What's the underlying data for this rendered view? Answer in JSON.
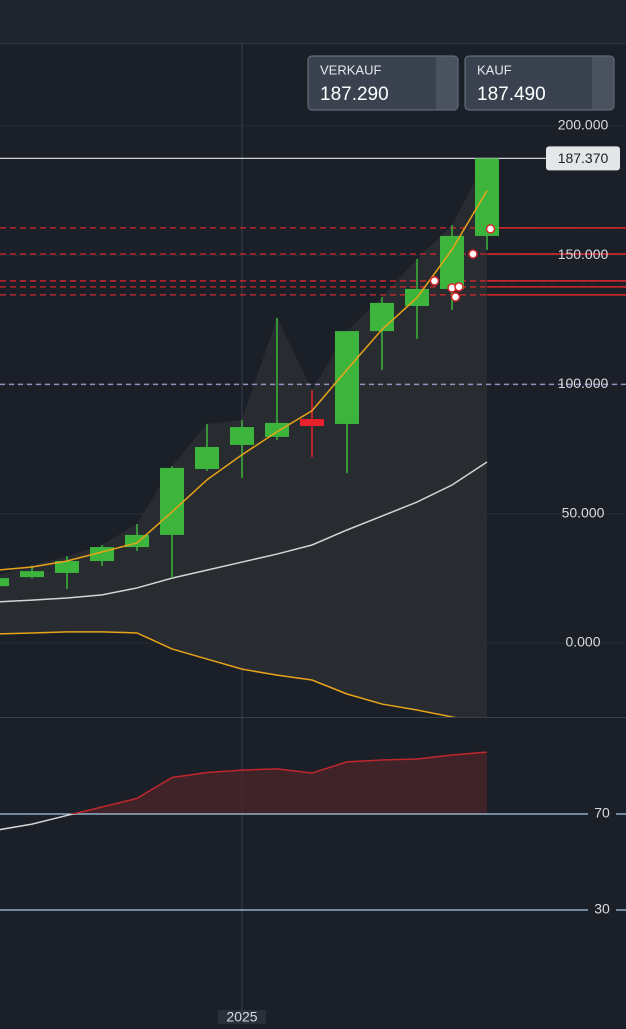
{
  "chart_data": {
    "type": "candlestick",
    "categories": [
      null,
      null,
      null,
      null,
      null,
      null,
      null,
      "2025",
      null,
      null,
      null,
      null,
      null,
      null,
      null
    ],
    "open": [
      22.0,
      25.5,
      27.1,
      31.7,
      37.1,
      41.8,
      67.3,
      76.6,
      79.7,
      86.6,
      84.7,
      120.6,
      130.3,
      136.9,
      157.4
    ],
    "high": [
      26.0,
      30.0,
      33.6,
      37.9,
      46.0,
      68.4,
      84.7,
      86.2,
      125.7,
      97.8,
      120.6,
      133.8,
      148.5,
      161.6,
      187.37
    ],
    "low": [
      21.0,
      25.0,
      20.9,
      29.8,
      35.6,
      25.1,
      66.5,
      63.8,
      78.5,
      71.9,
      65.7,
      105.6,
      117.6,
      128.8,
      152.0
    ],
    "close": [
      25.1,
      27.8,
      31.7,
      37.1,
      41.8,
      67.7,
      75.8,
      83.5,
      85.1,
      83.9,
      120.6,
      131.5,
      136.9,
      157.4,
      187.37
    ],
    "up_color": "#3db53d",
    "down_color": "#e8222c",
    "ylim": [
      -28.6,
      231.6
    ],
    "yticks": [
      {
        "value": 0,
        "label": "0.000"
      },
      {
        "value": 50,
        "label": "50.000"
      },
      {
        "value": 100,
        "label": "100.000"
      },
      {
        "value": 150,
        "label": "150.000"
      },
      {
        "value": 200,
        "label": "200.000"
      }
    ],
    "grid": true,
    "last_price": {
      "value": 187.37,
      "label": "187.370"
    },
    "moving_average": {
      "color": "#e8a318",
      "values": [
        28.2,
        29.4,
        31.7,
        35.2,
        38.7,
        50.7,
        63.1,
        72.8,
        81.7,
        89.8,
        105.7,
        121.2,
        133.5,
        152.1,
        174.9
      ]
    },
    "slow_average": {
      "color": "#d4d4d4",
      "values": [
        15.9,
        16.6,
        17.4,
        18.6,
        21.3,
        25.1,
        28.2,
        31.3,
        34.4,
        37.9,
        43.7,
        49.1,
        54.5,
        61.1,
        70.0
      ]
    },
    "lower_band": {
      "color": "#e8a318",
      "values": [
        3.5,
        3.9,
        4.3,
        4.3,
        3.9,
        -2.3,
        -6.2,
        -10.1,
        -12.4,
        -14.3,
        -19.7,
        -23.6,
        -25.9,
        -28.6,
        -31.0
      ]
    },
    "levels": [
      160.5,
      150.4,
      140.0,
      137.7,
      134.6
    ],
    "level_color": "#d9262c",
    "reference_level": 100,
    "trades": [
      {
        "x": 12.5,
        "value": 140.0
      },
      {
        "x": 13.0,
        "value": 137.3
      },
      {
        "x": 13.2,
        "value": 137.7
      },
      {
        "x": 13.1,
        "value": 133.8
      },
      {
        "x": 13.6,
        "value": 150.4
      },
      {
        "x": 14.1,
        "value": 160.1
      }
    ],
    "rsi": {
      "color": "#c0262c",
      "values": [
        63.3,
        65.8,
        69.4,
        72.9,
        76.5,
        85.2,
        87.3,
        88.3,
        88.8,
        87.1,
        91.7,
        92.5,
        92.9,
        94.6,
        95.8
      ],
      "ylim": [
        -10,
        100
      ],
      "yticks": [
        30,
        70
      ],
      "threshold": 70
    }
  },
  "quote": {
    "sell": {
      "label": "VERKAUF",
      "price": "187.290"
    },
    "buy": {
      "label": "KAUF",
      "price": "187.490"
    }
  }
}
